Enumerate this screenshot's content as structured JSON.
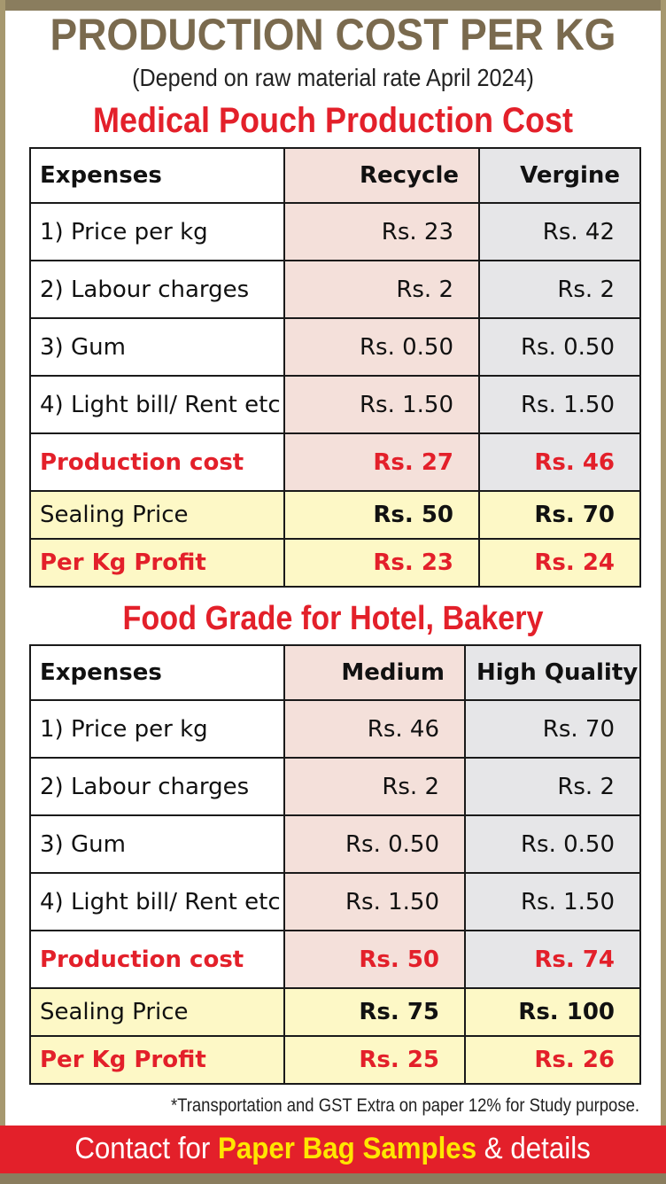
{
  "header": {
    "title": "PRODUCTION COST PER KG",
    "subtitle": "(Depend on raw material rate April 2024)"
  },
  "colors": {
    "accent_red": "#e3202a",
    "title_brown": "#7a6a4e",
    "highlight_yellow": "#fdf8c6",
    "col1_bg": "#f4e0da",
    "col2_bg": "#e6e6e8"
  },
  "tables": [
    {
      "title": "Medical Pouch Production Cost",
      "headers": [
        "Expenses",
        "Recycle",
        "Vergine"
      ],
      "rows": [
        {
          "label": "1) Price per kg",
          "v1": "Rs. 23",
          "v2": "Rs. 42"
        },
        {
          "label": "2) Labour charges",
          "v1": "Rs. 2",
          "v2": "Rs. 2"
        },
        {
          "label": "3) Gum",
          "v1": "Rs. 0.50",
          "v2": "Rs. 0.50"
        },
        {
          "label": "4) Light bill/ Rent etc",
          "v1": "Rs. 1.50",
          "v2": "Rs. 1.50"
        }
      ],
      "production_cost": {
        "label": "Production cost",
        "v1": "Rs. 27",
        "v2": "Rs. 46"
      },
      "sealing_price": {
        "label": "Sealing Price",
        "v1": "Rs. 50",
        "v2": "Rs. 70"
      },
      "profit": {
        "label": "Per Kg Profit",
        "v1": "Rs. 23",
        "v2": "Rs. 24"
      }
    },
    {
      "title": "Food Grade for Hotel, Bakery",
      "headers": [
        "Expenses",
        "Medium",
        "High Quality"
      ],
      "rows": [
        {
          "label": "1) Price per kg",
          "v1": "Rs. 46",
          "v2": "Rs. 70"
        },
        {
          "label": "2) Labour charges",
          "v1": "Rs. 2",
          "v2": "Rs. 2"
        },
        {
          "label": "3) Gum",
          "v1": "Rs. 0.50",
          "v2": "Rs. 0.50"
        },
        {
          "label": "4) Light bill/ Rent etc",
          "v1": "Rs. 1.50",
          "v2": "Rs. 1.50"
        }
      ],
      "production_cost": {
        "label": "Production cost",
        "v1": "Rs. 50",
        "v2": "Rs. 74"
      },
      "sealing_price": {
        "label": "Sealing Price",
        "v1": "Rs. 75",
        "v2": "Rs. 100"
      },
      "profit": {
        "label": "Per Kg Profit",
        "v1": "Rs. 25",
        "v2": "Rs. 26"
      }
    }
  ],
  "footnote": "*Transportation and GST Extra on paper 12% for Study purpose.",
  "contact": {
    "prefix": "Contact for",
    "highlight": "Paper Bag Samples",
    "suffix": "& details"
  }
}
